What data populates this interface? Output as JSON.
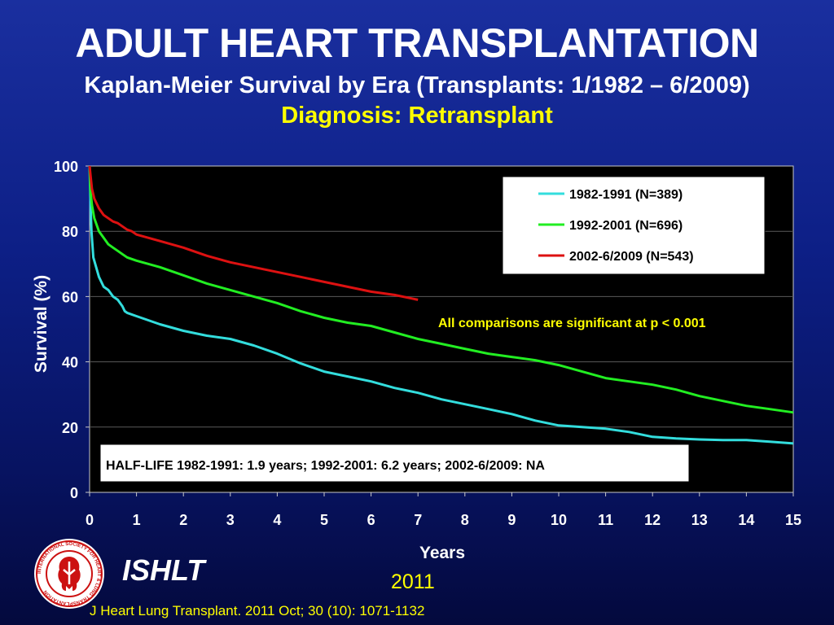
{
  "header": {
    "title": "ADULT HEART TRANSPLANTATION",
    "subtitle": "Kaplan-Meier Survival by Era (Transplants: 1/1982 – 6/2009)",
    "diagnosis": "Diagnosis: Retransplant"
  },
  "footer": {
    "brand": "ISHLT",
    "year": "2011",
    "citation": "J Heart Lung Transplant. 2011 Oct; 30 (10): 1071-1132",
    "logo_text": "INTERNATIONAL SOCIETY FOR HEART & LUNG TRANSPLANTATION"
  },
  "colors": {
    "background": "#0d1f86",
    "plot_background": "#000000",
    "series_1982": "#33dddd",
    "series_1992": "#22ee22",
    "series_2002": "#dd1111",
    "highlight_text": "#ffff00"
  },
  "chart_data": {
    "type": "line",
    "title": "",
    "xlabel": "Years",
    "ylabel": "Survival (%)",
    "xlim": [
      0,
      15
    ],
    "ylim": [
      0,
      100
    ],
    "xticks": [
      0,
      1,
      2,
      3,
      4,
      5,
      6,
      7,
      8,
      9,
      10,
      11,
      12,
      13,
      14,
      15
    ],
    "yticks": [
      0,
      20,
      40,
      60,
      80,
      100
    ],
    "grid": "horizontal",
    "legend_position": "top-right",
    "series": [
      {
        "name": "1982-1991 (N=389)",
        "color": "#33dddd",
        "x": [
          0,
          0.02,
          0.04,
          0.08,
          0.12,
          0.2,
          0.3,
          0.4,
          0.5,
          0.6,
          0.7,
          0.75,
          0.8,
          1,
          1.5,
          2,
          2.5,
          3,
          3.5,
          4,
          4.5,
          5,
          5.5,
          6,
          6.5,
          7,
          7.5,
          8,
          8.5,
          9,
          9.5,
          10,
          10.5,
          11,
          11.5,
          12,
          12.5,
          13,
          13.5,
          14,
          14.5,
          15
        ],
        "y": [
          100,
          88,
          80,
          72,
          70,
          66,
          63,
          62,
          60,
          59,
          57,
          55.5,
          55,
          54,
          51.5,
          49.5,
          48,
          47,
          45,
          42.5,
          39.5,
          37,
          35.5,
          34,
          32,
          30.5,
          28.5,
          27,
          25.5,
          24,
          22,
          20.5,
          20,
          19.5,
          18.5,
          17,
          16.5,
          16.2,
          16,
          16,
          15.5,
          15
        ]
      },
      {
        "name": "1992-2001 (N=696)",
        "color": "#22ee22",
        "x": [
          0,
          0.02,
          0.05,
          0.1,
          0.2,
          0.3,
          0.4,
          0.5,
          0.6,
          0.7,
          0.8,
          0.9,
          1,
          1.5,
          2,
          2.5,
          3,
          3.5,
          4,
          4.5,
          5,
          5.5,
          6,
          6.5,
          7,
          7.5,
          8,
          8.5,
          9,
          9.5,
          10,
          10.5,
          11,
          11.5,
          12,
          12.5,
          13,
          13.5,
          14,
          14.5,
          15
        ],
        "y": [
          100,
          92,
          88,
          84,
          80,
          78,
          76,
          75,
          74,
          73,
          72,
          71.5,
          71,
          69,
          66.5,
          64,
          62,
          60,
          58,
          55.5,
          53.5,
          52,
          51,
          49,
          47,
          45.5,
          44,
          42.5,
          41.5,
          40.5,
          39,
          37,
          35,
          34,
          33,
          31.5,
          29.5,
          28,
          26.5,
          25.5,
          24.5
        ]
      },
      {
        "name": "2002-6/2009 (N=543)",
        "color": "#dd1111",
        "x": [
          0,
          0.02,
          0.05,
          0.1,
          0.2,
          0.3,
          0.4,
          0.5,
          0.6,
          0.7,
          0.8,
          0.9,
          1,
          1.5,
          2,
          2.5,
          3,
          3.5,
          4,
          4.5,
          5,
          5.5,
          6,
          6.5,
          7
        ],
        "y": [
          100,
          97,
          93,
          90,
          87,
          85,
          84,
          83,
          82.5,
          81.5,
          80.5,
          80,
          79,
          77,
          75,
          72.5,
          70.5,
          69,
          67.5,
          66,
          64.5,
          63,
          61.5,
          60.5,
          59
        ]
      }
    ],
    "annotations": {
      "significance": "All comparisons are significant at p < 0.001",
      "half_life": "HALF-LIFE 1982-1991: 1.9 years; 1992-2001: 6.2 years; 2002-6/2009: NA"
    }
  }
}
